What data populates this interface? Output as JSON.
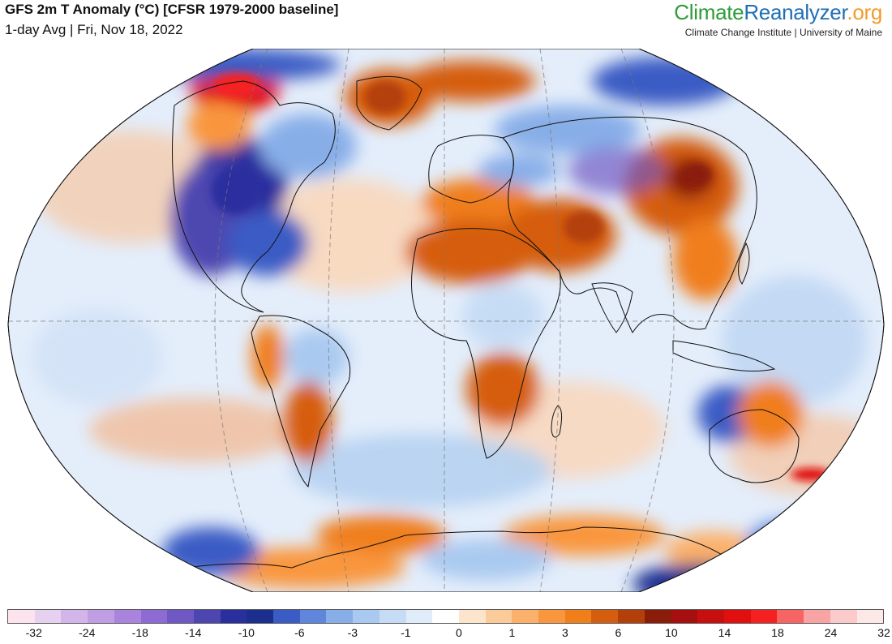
{
  "header": {
    "title": "GFS 2m T Anomaly (°C) [CFSR 1979-2000 baseline]",
    "subtitle": "1-day Avg | Fri, Nov 18, 2022"
  },
  "brand": {
    "name_part1": "Climate",
    "name_part2": "Reanalyzer",
    "name_part3": ".org",
    "tagline": "Climate Change Institute | University of Maine",
    "color_part1": "#2e9c3a",
    "color_part2": "#1f6fb5",
    "color_part3": "#f29b2a"
  },
  "map": {
    "projection": "Winkel Tripel / elliptical world map",
    "region": "global",
    "anomaly_regions": [
      {
        "name": "Alaska / Bering Strait",
        "anomaly": "warm",
        "level": 24
      },
      {
        "name": "Greenland",
        "anomaly": "warm",
        "level": 10
      },
      {
        "name": "Barents Sea / Scandinavia Arctic",
        "anomaly": "warm",
        "level": 10
      },
      {
        "name": "Central and eastern North America",
        "anomaly": "cold",
        "level": -14
      },
      {
        "name": "Western Canada",
        "anomaly": "cold",
        "level": -6
      },
      {
        "name": "Northern Siberia",
        "anomaly": "cold",
        "level": -10
      },
      {
        "name": "Central Asia / Mongolia / China",
        "anomaly": "warm",
        "level": 10
      },
      {
        "name": "North Africa / Middle East",
        "anomaly": "warm",
        "level": 6
      },
      {
        "name": "Southern Africa",
        "anomaly": "warm",
        "level": 6
      },
      {
        "name": "Southern South America",
        "anomaly": "warm",
        "level": 6
      },
      {
        "name": "Western Australia",
        "anomaly": "cold",
        "level": -6
      },
      {
        "name": "Eastern Australia",
        "anomaly": "warm",
        "level": 3
      },
      {
        "name": "Antarctic coast",
        "anomaly": "warm",
        "level": 6
      }
    ]
  },
  "colorbar": {
    "colors": [
      "#fde3ee",
      "#e6d2f0",
      "#d3b5ea",
      "#c19ee4",
      "#a983dc",
      "#8e6bd2",
      "#6f58c4",
      "#4e46b0",
      "#2a2f9e",
      "#1c2f8f",
      "#3a5cc4",
      "#5f86da",
      "#88aee8",
      "#a9c9f0",
      "#c6dcf5",
      "#e0ecfa",
      "#ffffff",
      "#fde4cc",
      "#fccb9a",
      "#fbb06b",
      "#f9963e",
      "#f07e1a",
      "#d55d10",
      "#b3400b",
      "#8a1d0a",
      "#a50f0f",
      "#c80f0f",
      "#e01010",
      "#f52020",
      "#f76464",
      "#f9a4a4",
      "#fbcaca",
      "#fde8e8"
    ],
    "tick_labels": [
      "-32",
      "-24",
      "-18",
      "-14",
      "-10",
      "-6",
      "-3",
      "-1",
      "0",
      "1",
      "3",
      "6",
      "10",
      "14",
      "18",
      "24",
      "32"
    ]
  }
}
